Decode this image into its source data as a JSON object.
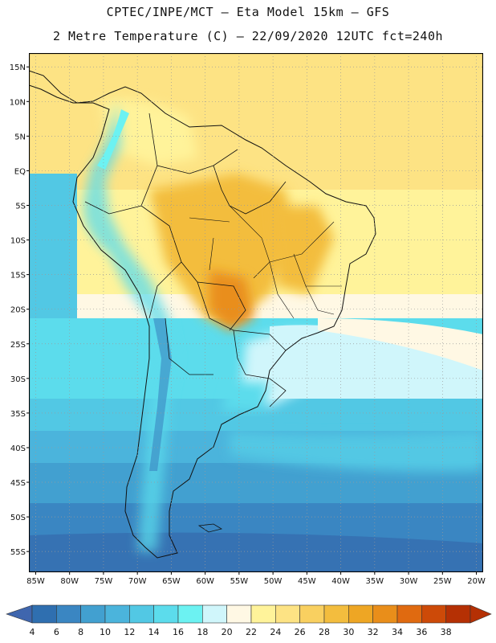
{
  "header": {
    "title_line1": "CPTEC/INPE/MCT –  Eta Model 15km – GFS",
    "title_line2": "2 Metre Temperature (C) – 22/09/2020 12UTC fct=240h"
  },
  "map": {
    "lat_labels": [
      "15N",
      "10N",
      "5N",
      "EQ",
      "5S",
      "10S",
      "15S",
      "20S",
      "25S",
      "30S",
      "35S",
      "40S",
      "45S",
      "50S",
      "55S"
    ],
    "lat_values": [
      15,
      10,
      5,
      0,
      -5,
      -10,
      -15,
      -20,
      -25,
      -30,
      -35,
      -40,
      -45,
      -50,
      -55
    ],
    "lon_labels": [
      "85W",
      "80W",
      "75W",
      "70W",
      "65W",
      "60W",
      "55W",
      "50W",
      "45W",
      "40W",
      "35W",
      "30W",
      "25W",
      "20W"
    ],
    "lon_values": [
      -85,
      -80,
      -75,
      -70,
      -65,
      -60,
      -55,
      -50,
      -45,
      -40,
      -35,
      -30,
      -25,
      -20
    ],
    "lon_range": [
      -86,
      -19
    ],
    "lat_range": [
      -58,
      17
    ]
  },
  "colorbar": {
    "labels": [
      "4",
      "6",
      "8",
      "10",
      "12",
      "14",
      "16",
      "18",
      "20",
      "22",
      "24",
      "26",
      "28",
      "30",
      "32",
      "34",
      "36",
      "38"
    ],
    "colors": [
      "#2f6fb0",
      "#3a86c2",
      "#42a0d0",
      "#4bb4dc",
      "#52c8e4",
      "#5cdcec",
      "#6cf2f2",
      "#d0f6fb",
      "#fff8e4",
      "#fff39a",
      "#fde384",
      "#f9d060",
      "#f3bd3e",
      "#eea624",
      "#e98e1a",
      "#e06a10",
      "#cd4a08",
      "#b53004"
    ],
    "low_color": "#3f66ae",
    "high_color": "#b53004"
  }
}
